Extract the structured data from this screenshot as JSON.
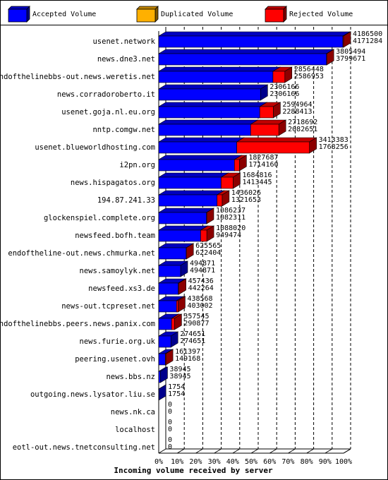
{
  "chart_data": {
    "type": "bar",
    "orientation": "horizontal",
    "stacked": true,
    "x_label": "Incoming volume received by server",
    "categories": [
      "usenet.network",
      "news.dne3.net",
      "endofthelinebbs-out.news.weretis.net",
      "news.corradoroberto.it",
      "usenet.goja.nl.eu.org",
      "nntp.comgw.net",
      "usenet.blueworldhosting.com",
      "i2pn.org",
      "news.hispagatos.org",
      "194.87.241.33",
      "glockenspiel.complete.org",
      "newsfeed.bofh.team",
      "endoftheline-out.news.chmurka.net",
      "news.samoylyk.net",
      "newsfeed.xs3.de",
      "news-out.tcpreset.net",
      "endofthelinebbs.peers.news.panix.com",
      "news.furie.org.uk",
      "peering.usenet.ovh",
      "news.bbs.nz",
      "outgoing.news.lysator.liu.se",
      "news.nk.ca",
      "localhost",
      "eotl-out.news.tnetconsulting.net"
    ],
    "totals": [
      4186500,
      3805494,
      2856448,
      2306166,
      2594964,
      2718692,
      3413383,
      1827687,
      1684816,
      1436026,
      1086237,
      1088020,
      625565,
      494871,
      457436,
      438568,
      357545,
      274651,
      161397,
      38945,
      1754,
      0,
      0,
      0
    ],
    "series": [
      {
        "name": "Accepted Volume",
        "color": "#0000ff",
        "values": [
          4171284,
          3799671,
          2586953,
          2306166,
          2288413,
          2082651,
          1768256,
          1714160,
          1413445,
          1321653,
          1082311,
          949474,
          622404,
          494871,
          442264,
          403002,
          290877,
          274651,
          149168,
          38945,
          1754,
          0,
          0,
          0
        ]
      },
      {
        "name": "Duplicated Volume",
        "color": "#ffb000",
        "values": [
          0,
          0,
          0,
          0,
          0,
          0,
          0,
          0,
          0,
          0,
          0,
          0,
          0,
          0,
          0,
          0,
          0,
          0,
          0,
          0,
          0,
          0,
          0,
          0
        ]
      },
      {
        "name": "Rejected Volume",
        "color": "#ff0000",
        "values": [
          15216,
          5823,
          269495,
          0,
          306551,
          636041,
          1645127,
          113527,
          271371,
          114373,
          3926,
          138546,
          3161,
          0,
          15172,
          35566,
          66668,
          0,
          12229,
          0,
          0,
          0,
          0,
          0
        ]
      }
    ],
    "xlim": [
      0,
      4186500
    ],
    "xticks": [
      {
        "value": 0,
        "label": "0%"
      },
      {
        "value": 418650,
        "label": "10%"
      },
      {
        "value": 837300,
        "label": "20%"
      },
      {
        "value": 1255950,
        "label": "30%"
      },
      {
        "value": 1674600,
        "label": "40%"
      },
      {
        "value": 2093250,
        "label": "50%"
      },
      {
        "value": 2511900,
        "label": "60%"
      },
      {
        "value": 2930550,
        "label": "70%"
      },
      {
        "value": 3349200,
        "label": "80%"
      },
      {
        "value": 3767850,
        "label": "90%"
      },
      {
        "value": 4186500,
        "label": "100%"
      }
    ],
    "grid": true,
    "legend": "top"
  }
}
